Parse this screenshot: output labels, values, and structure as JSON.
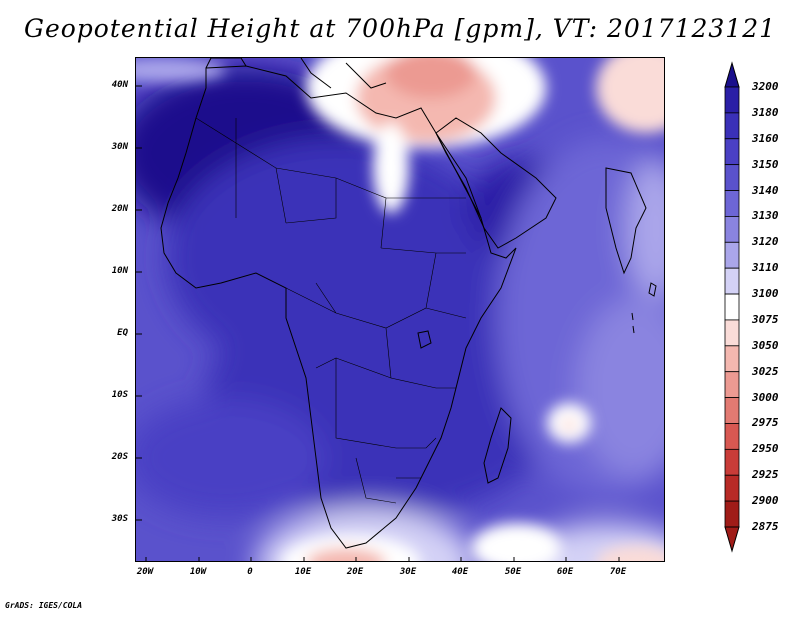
{
  "title": "Geopotential Height at 700hPa [gpm], VT: 2017123121",
  "credit": "GrADS: IGES/COLA",
  "map": {
    "projection": "latlon",
    "lon_range": [
      -25,
      80
    ],
    "lat_range": [
      -37,
      45
    ],
    "field_description": "700 hPa geopotential height, Africa/Indian Ocean",
    "lat_ticks": [
      "40N",
      "30N",
      "20N",
      "10N",
      "EQ",
      "10S",
      "20S",
      "30S"
    ],
    "lon_ticks": [
      "20W",
      "10W",
      "0",
      "10E",
      "20E",
      "30E",
      "40E",
      "50E",
      "60E",
      "70E"
    ]
  },
  "colorbar": {
    "levels_top_to_bottom": [
      "3200",
      "3180",
      "3160",
      "3150",
      "3140",
      "3130",
      "3120",
      "3110",
      "3100",
      "3075",
      "3050",
      "3025",
      "3000",
      "2975",
      "2950",
      "2925",
      "2900",
      "2875"
    ],
    "colors_top_to_bottom": [
      "#1a0f8c",
      "#2a1fa6",
      "#3a30b8",
      "#4a40c4",
      "#5a52cc",
      "#6d66d6",
      "#8a84e0",
      "#aaa6ea",
      "#d4d2f6",
      "#ffffff",
      "#fadcd8",
      "#f4b8b0",
      "#ec9a92",
      "#e27a72",
      "#d85852",
      "#c93c38",
      "#b82a26",
      "#a01c18"
    ]
  }
}
